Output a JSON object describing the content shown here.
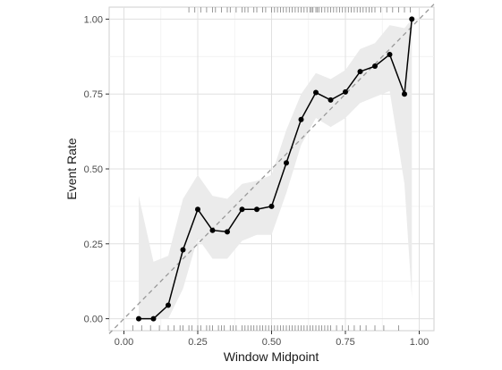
{
  "chart_data": {
    "type": "line",
    "title": "",
    "xlabel": "Window Midpoint",
    "ylabel": "Event Rate",
    "xlim": [
      -0.05,
      1.05
    ],
    "ylim": [
      -0.04,
      1.04
    ],
    "grid": true,
    "x_ticks": [
      0.0,
      0.25,
      0.5,
      0.75,
      1.0
    ],
    "y_ticks": [
      0.0,
      0.25,
      0.5,
      0.75,
      1.0
    ],
    "x_tick_labels": [
      "0.00",
      "0.25",
      "0.50",
      "0.75",
      "1.00"
    ],
    "y_tick_labels": [
      "0.00",
      "0.25",
      "0.50",
      "0.75",
      "1.00"
    ],
    "reference_line": {
      "style": "dashed",
      "from": [
        -0.05,
        -0.05
      ],
      "to": [
        1.05,
        1.05
      ],
      "color": "#999999"
    },
    "series": [
      {
        "x": [
          0.05,
          0.1,
          0.15,
          0.2,
          0.25,
          0.3,
          0.35,
          0.4,
          0.45,
          0.5,
          0.55,
          0.6,
          0.65,
          0.7,
          0.75,
          0.8,
          0.85,
          0.9,
          0.95,
          0.975
        ],
        "y": [
          0.0,
          0.0,
          0.045,
          0.23,
          0.365,
          0.295,
          0.29,
          0.365,
          0.365,
          0.375,
          0.52,
          0.665,
          0.755,
          0.73,
          0.757,
          0.825,
          0.843,
          0.882,
          0.75,
          1.0
        ],
        "ci_lower": [
          0.0,
          0.0,
          0.0,
          0.1,
          0.27,
          0.2,
          0.2,
          0.26,
          0.28,
          0.28,
          0.42,
          0.58,
          0.67,
          0.64,
          0.67,
          0.72,
          0.74,
          0.76,
          0.45,
          0.07
        ],
        "ci_upper": [
          0.41,
          0.19,
          0.21,
          0.4,
          0.48,
          0.41,
          0.4,
          0.45,
          0.46,
          0.48,
          0.63,
          0.75,
          0.82,
          0.8,
          0.83,
          0.9,
          0.92,
          0.98,
          0.97,
          1.0
        ],
        "color": "#000000",
        "ribbon_color": "#ebebeb"
      }
    ],
    "rug_top": [
      0.22,
      0.24,
      0.26,
      0.28,
      0.3,
      0.31,
      0.33,
      0.35,
      0.36,
      0.38,
      0.4,
      0.41,
      0.42,
      0.44,
      0.45,
      0.47,
      0.48,
      0.5,
      0.51,
      0.52,
      0.53,
      0.54,
      0.55,
      0.56,
      0.57,
      0.58,
      0.59,
      0.6,
      0.61,
      0.62,
      0.63,
      0.635,
      0.64,
      0.65,
      0.655,
      0.66,
      0.67,
      0.68,
      0.69,
      0.7,
      0.71,
      0.72,
      0.73,
      0.74,
      0.75,
      0.76,
      0.77,
      0.78,
      0.79,
      0.8,
      0.81,
      0.82,
      0.83,
      0.84,
      0.85,
      0.87,
      0.89,
      0.91,
      0.93,
      0.95,
      0.97
    ],
    "rug_bottom": [
      0.03,
      0.06,
      0.09,
      0.12,
      0.15,
      0.17,
      0.19,
      0.2,
      0.22,
      0.23,
      0.25,
      0.26,
      0.28,
      0.29,
      0.3,
      0.32,
      0.33,
      0.34,
      0.36,
      0.37,
      0.38,
      0.4,
      0.41,
      0.42,
      0.43,
      0.44,
      0.45,
      0.46,
      0.47,
      0.48,
      0.49,
      0.5,
      0.51,
      0.52,
      0.53,
      0.54,
      0.55,
      0.56,
      0.57,
      0.58,
      0.59,
      0.6,
      0.61,
      0.62,
      0.63,
      0.64,
      0.65,
      0.66,
      0.67,
      0.68,
      0.69,
      0.7,
      0.72,
      0.74,
      0.76,
      0.78,
      0.8,
      0.82,
      0.85,
      0.88,
      0.93
    ]
  }
}
